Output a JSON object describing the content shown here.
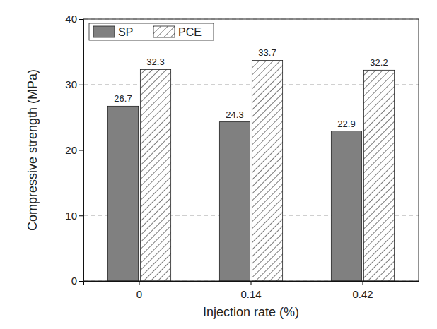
{
  "chart_data": {
    "type": "bar",
    "x_label": "Injection rate (%)",
    "y_label": "Compressive strength (MPa)",
    "categories": [
      "0",
      "0.14",
      "0.42"
    ],
    "series": [
      {
        "name": "SP",
        "color": "#808080",
        "values": [
          26.7,
          24.3,
          22.9
        ]
      },
      {
        "name": "PCE",
        "color": "#333333",
        "values": [
          32.3,
          33.7,
          32.2
        ]
      }
    ],
    "ylim": [
      0,
      40
    ],
    "yticks": [
      0,
      10,
      20,
      30,
      40
    ],
    "grid": true,
    "legend": "upper left",
    "data_labels": true
  }
}
